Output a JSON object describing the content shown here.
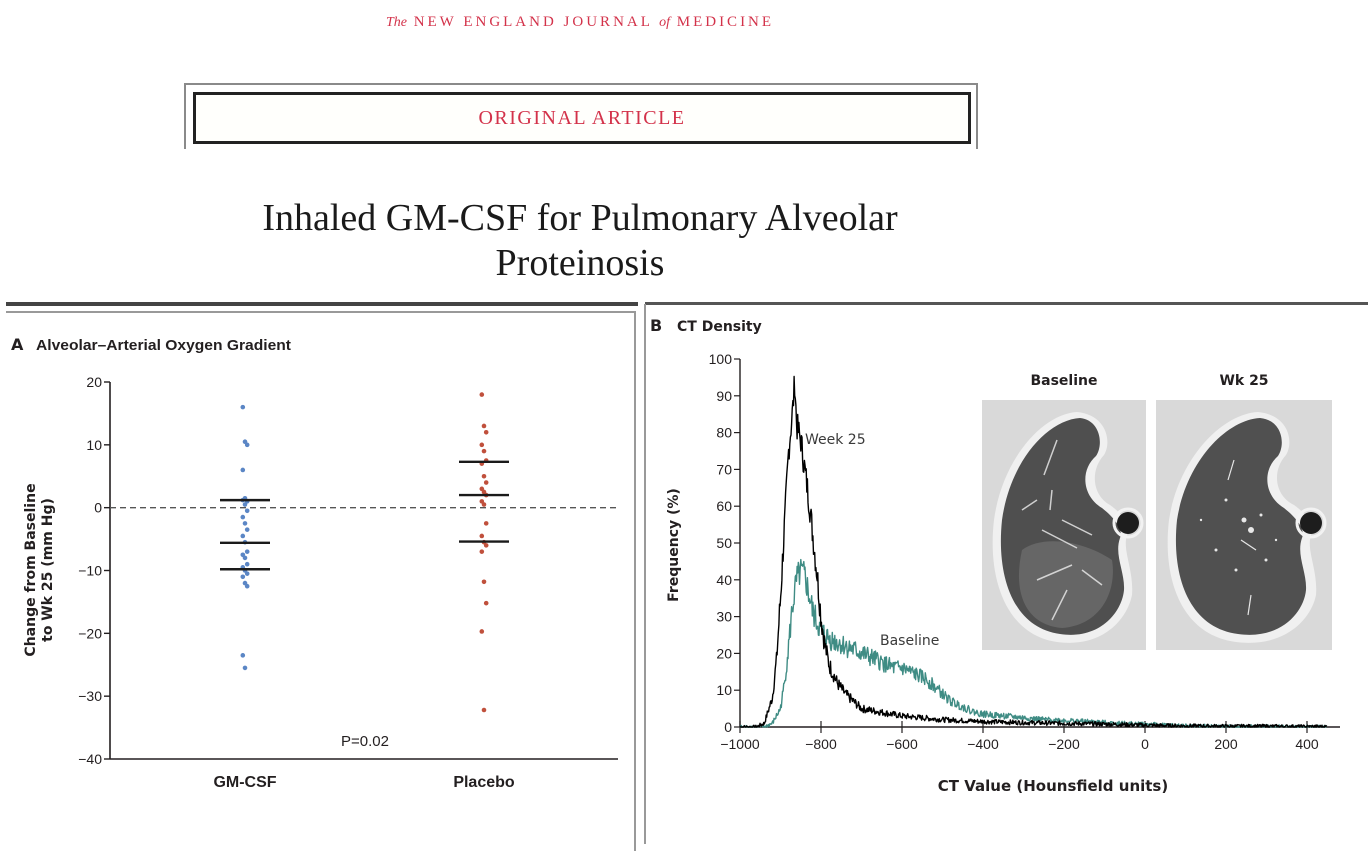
{
  "header": {
    "journal_prefix": "The",
    "journal_mid1": "NEW ENGLAND JOURNAL",
    "journal_of": "of",
    "journal_mid2": "MEDICINE",
    "banner": "ORIGINAL ARTICLE",
    "title_line1": "Inhaled GM-CSF for Pulmonary Alveolar",
    "title_line2": "Proteinosis"
  },
  "colors": {
    "brand_red": "#d3324a",
    "gmcsf_blue": "#5b86c5",
    "placebo_red": "#c0503c",
    "baseline_teal": "#3f8c84",
    "week25_black": "#000000"
  },
  "chart_data": [
    {
      "type": "scatter",
      "panel_letter": "A",
      "title": "Alveolar–Arterial Oxygen Gradient",
      "ylabel_line1": "Change from Baseline",
      "ylabel_line2": "to Wk 25 (mm Hg)",
      "xlabel": "",
      "categories": [
        "GM-CSF",
        "Placebo"
      ],
      "ylim": [
        -40,
        20
      ],
      "yticks": [
        20,
        10,
        0,
        -10,
        -20,
        -30,
        -40
      ],
      "ytick_labels": [
        "20",
        "10",
        "0",
        "−10",
        "−20",
        "−30",
        "−40"
      ],
      "reference_line": 0,
      "annotation": "P=0.02",
      "series": [
        {
          "name": "GM-CSF",
          "values": [
            16,
            10.5,
            10,
            6,
            1.5,
            1,
            1.2,
            0.5,
            -0.5,
            -1.5,
            -2.5,
            -3.5,
            -4.5,
            -5.5,
            -7,
            -7.5,
            -8,
            -9,
            -9.5,
            -10,
            -10.5,
            -11,
            -12,
            -12.5,
            -23.5,
            -25.5
          ],
          "quartiles": {
            "q3": 1.2,
            "median": -5.6,
            "q1": -9.8
          }
        },
        {
          "name": "Placebo",
          "values": [
            18,
            13,
            12,
            10,
            9,
            7.5,
            7,
            5,
            4,
            3,
            2.5,
            2,
            1,
            0.5,
            -2.5,
            -4.5,
            -5.5,
            -6,
            -7,
            -11.8,
            -15.2,
            -19.7,
            -32.2
          ],
          "quartiles": {
            "q3": 7.3,
            "median": 2.0,
            "q1": -5.4
          }
        }
      ]
    },
    {
      "type": "line",
      "panel_letter": "B",
      "title": "CT Density",
      "xlabel": "CT Value (Hounsfield units)",
      "ylabel": "Frequency (%)",
      "xlim": [
        -1000,
        450
      ],
      "ylim": [
        0,
        100
      ],
      "xticks": [
        -1000,
        -800,
        -600,
        -400,
        -200,
        0,
        200,
        400
      ],
      "xtick_labels": [
        "−1000",
        "−800",
        "−600",
        "−400",
        "−200",
        "0",
        "200",
        "400"
      ],
      "yticks": [
        0,
        10,
        20,
        30,
        40,
        50,
        60,
        70,
        80,
        90,
        100
      ],
      "ytick_labels": [
        "0",
        "10",
        "20",
        "30",
        "40",
        "50",
        "60",
        "70",
        "80",
        "90",
        "100"
      ],
      "series": [
        {
          "name": "Week 25",
          "label": "Week 25",
          "x": [
            -1000,
            -960,
            -940,
            -920,
            -910,
            -900,
            -890,
            -880,
            -870,
            -865,
            -860,
            -850,
            -840,
            -830,
            -820,
            -810,
            -800,
            -790,
            -780,
            -760,
            -740,
            -720,
            -700,
            -650,
            -600,
            -550,
            -500,
            -400,
            -300,
            -200,
            -100,
            0,
            100,
            200,
            300,
            400,
            450
          ],
          "y": [
            0,
            0,
            1,
            8,
            18,
            35,
            55,
            75,
            86,
            94,
            82,
            78,
            70,
            62,
            52,
            42,
            30,
            22,
            17,
            12,
            9,
            7,
            5,
            4,
            3,
            2.5,
            2,
            1.5,
            1.2,
            1,
            0.8,
            0.5,
            0.3,
            0.2,
            0.2,
            0.1,
            0.1
          ]
        },
        {
          "name": "Baseline",
          "label": "Baseline",
          "x": [
            -1000,
            -940,
            -920,
            -900,
            -890,
            -880,
            -870,
            -860,
            -850,
            -840,
            -830,
            -820,
            -800,
            -780,
            -760,
            -740,
            -720,
            -700,
            -680,
            -660,
            -640,
            -620,
            -600,
            -580,
            -560,
            -540,
            -520,
            -500,
            -480,
            -460,
            -440,
            -420,
            -400,
            -350,
            -300,
            -250,
            -200,
            -150,
            -100,
            -50,
            0,
            50,
            100,
            200,
            300,
            450
          ],
          "y": [
            0,
            0,
            1,
            5,
            12,
            22,
            33,
            40,
            42,
            41,
            36,
            31,
            26,
            24,
            23,
            22,
            21,
            20,
            19,
            18,
            17,
            16,
            16,
            15,
            14,
            13,
            11,
            9,
            7,
            6,
            5,
            4,
            3.5,
            3,
            2.5,
            2,
            1.8,
            1.5,
            1.2,
            1,
            0.8,
            0.5,
            0.3,
            0.1,
            0.1,
            0
          ]
        }
      ],
      "inset_images": [
        {
          "label": "Baseline"
        },
        {
          "label": "Wk 25"
        }
      ]
    }
  ]
}
